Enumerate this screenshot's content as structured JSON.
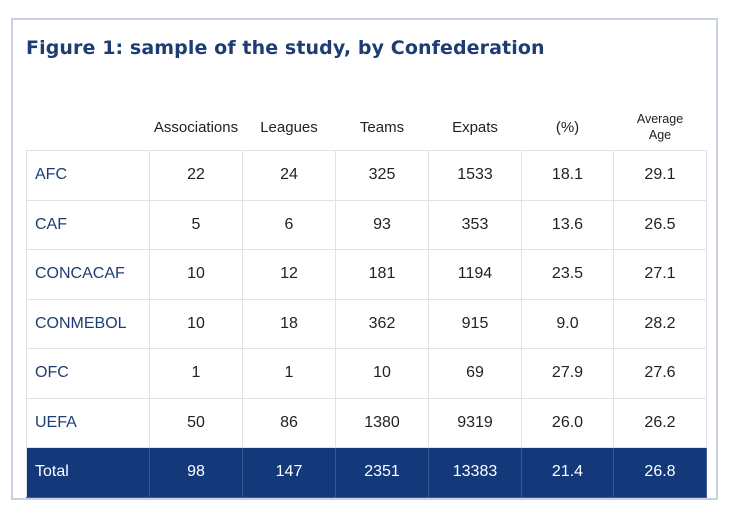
{
  "figure": {
    "title": "Figure 1: sample of the study, by Confederation"
  },
  "table": {
    "headers": [
      "",
      "Associations",
      "Leagues",
      "Teams",
      "Expats",
      "(%)",
      "Average Age"
    ],
    "header_average_line1": "Average",
    "header_average_line2": "Age",
    "rows": [
      [
        "AFC",
        "22",
        "24",
        "325",
        "1533",
        "18.1",
        "29.1"
      ],
      [
        "CAF",
        "5",
        "6",
        "93",
        "353",
        "13.6",
        "26.5"
      ],
      [
        "CONCACAF",
        "10",
        "12",
        "181",
        "1194",
        "23.5",
        "27.1"
      ],
      [
        "CONMEBOL",
        "10",
        "18",
        "362",
        "915",
        "9.0",
        "28.2"
      ],
      [
        "OFC",
        "1",
        "1",
        "10",
        "69",
        "27.9",
        "27.6"
      ],
      [
        "UEFA",
        "50",
        "86",
        "1380",
        "9319",
        "26.0",
        "26.2"
      ]
    ],
    "total": [
      "Total",
      "98",
      "147",
      "2351",
      "13383",
      "21.4",
      "26.8"
    ]
  },
  "colors": {
    "title": "#1d3d74",
    "total_row_bg": "#13397b",
    "frame_border": "#c9d1e3"
  }
}
